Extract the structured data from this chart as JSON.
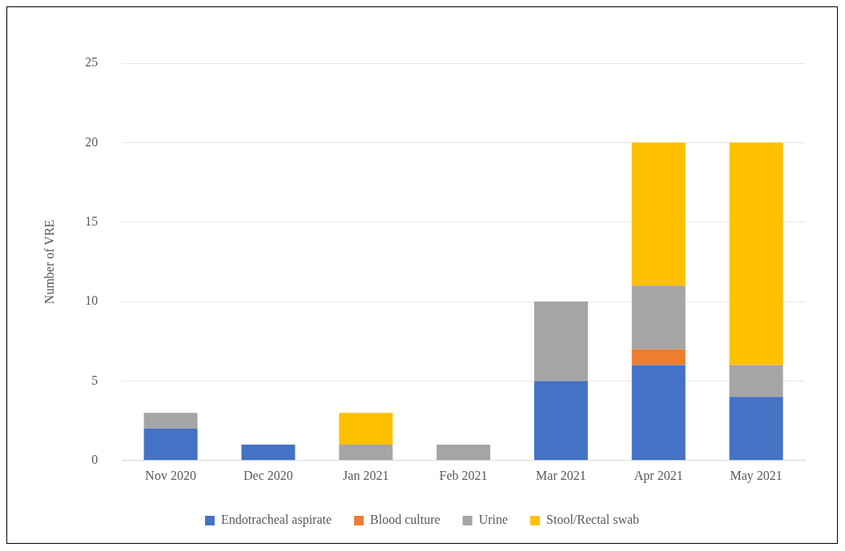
{
  "chart_data": {
    "type": "bar",
    "stacked": true,
    "ylabel": "Number of VRE",
    "categories": [
      "Nov 2020",
      "Dec 2020",
      "Jan 2021",
      "Feb 2021",
      "Mar 2021",
      "Apr 2021",
      "May 2021"
    ],
    "series": [
      {
        "name": "Endotracheal aspirate",
        "color": "#4472c4",
        "values": [
          2,
          1,
          0,
          0,
          5,
          6,
          4
        ]
      },
      {
        "name": "Blood culture",
        "color": "#ed7d31",
        "values": [
          0,
          0,
          0,
          0,
          0,
          1,
          0
        ]
      },
      {
        "name": "Urine",
        "color": "#a5a5a5",
        "values": [
          1,
          0,
          1,
          1,
          5,
          4,
          2
        ]
      },
      {
        "name": "Stool/Rectal swab",
        "color": "#ffc000",
        "values": [
          0,
          0,
          2,
          0,
          0,
          9,
          14
        ]
      }
    ],
    "ylim": [
      0,
      25
    ],
    "yticks": [
      0,
      5,
      10,
      15,
      20,
      25
    ],
    "grid": "y",
    "legend": "bottom"
  }
}
